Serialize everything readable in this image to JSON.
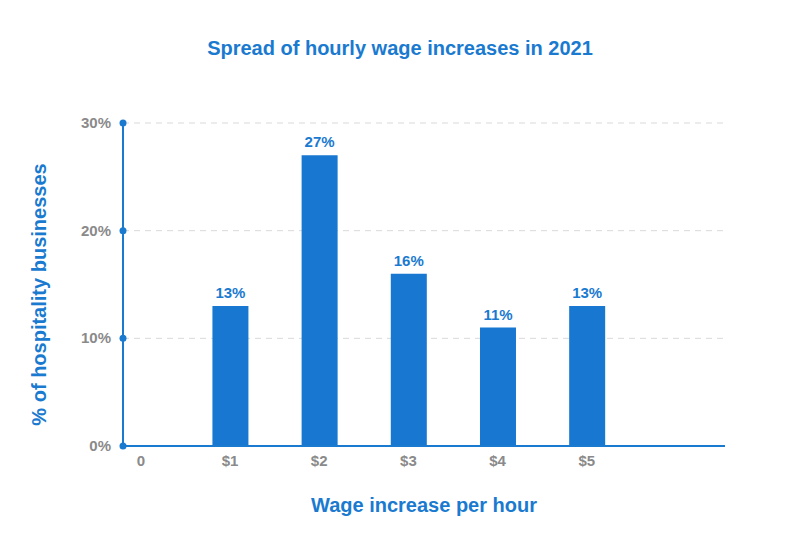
{
  "chart_data": {
    "type": "bar",
    "title": "Spread of hourly wage increases in 2021",
    "x_label": "Wage increase per hour",
    "y_label": "% of hospitality businesses",
    "x": [
      1,
      2,
      3,
      4,
      5
    ],
    "values": [
      13,
      27,
      16,
      11,
      13
    ],
    "value_labels": [
      "13%",
      "27%",
      "16%",
      "11%",
      "13%"
    ],
    "color": "#1777d1",
    "xlim": [
      -0.2,
      6.55
    ],
    "xticks": [
      {
        "value": 0,
        "label": "0"
      },
      {
        "value": 1,
        "label": "$1"
      },
      {
        "value": 2,
        "label": "$2"
      },
      {
        "value": 3,
        "label": "$3"
      },
      {
        "value": 4,
        "label": "$4"
      },
      {
        "value": 5,
        "label": "$5"
      }
    ],
    "ylim": [
      0,
      30
    ],
    "yticks": [
      {
        "value": 0,
        "label": "0%"
      },
      {
        "value": 10,
        "label": "10%"
      },
      {
        "value": 20,
        "label": "20%"
      },
      {
        "value": 30,
        "label": "30%"
      }
    ],
    "grid": true,
    "data_labels": true
  }
}
